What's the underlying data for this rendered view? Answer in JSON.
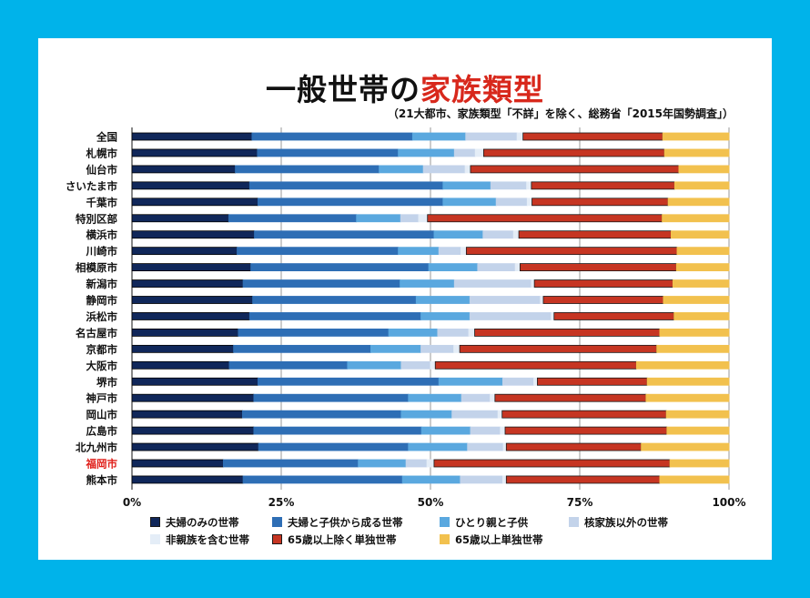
{
  "title": {
    "prefix": "一般世帯の",
    "accent": "家族類型"
  },
  "subtitle": "（21大都市、家族類型「不詳」を除く、総務省「2015年国勢調査」）",
  "colors": {
    "background": "#00b3ea",
    "highlight_label": "#e0201b"
  },
  "chart_data": {
    "type": "bar",
    "orientation": "horizontal",
    "stacked": true,
    "percent_scale": true,
    "categories": [
      "全国",
      "札幌市",
      "仙台市",
      "さいたま市",
      "千葉市",
      "特別区部",
      "横浜市",
      "川崎市",
      "相模原市",
      "新潟市",
      "静岡市",
      "浜松市",
      "名古屋市",
      "京都市",
      "大阪市",
      "堺市",
      "神戸市",
      "岡山市",
      "広島市",
      "北九州市",
      "福岡市",
      "熊本市"
    ],
    "highlight_category": "福岡市",
    "xlim": [
      0,
      100
    ],
    "xticks": [
      "0%",
      "25%",
      "50%",
      "75%",
      "100%"
    ],
    "grid": true,
    "legend_position": "bottom",
    "series": [
      {
        "name": "夫婦のみの世帯",
        "color": "#10275a",
        "border": "#000000",
        "values": [
          20.1,
          21.0,
          17.3,
          19.7,
          21.1,
          16.2,
          20.5,
          17.6,
          19.9,
          18.6,
          20.2,
          19.7,
          17.8,
          17.0,
          16.3,
          21.1,
          20.4,
          18.5,
          20.4,
          21.2,
          15.3,
          18.6
        ]
      },
      {
        "name": "夫婦と子供から成る世帯",
        "color": "#2e6eb5",
        "border": "#2e6eb5",
        "values": [
          26.9,
          23.6,
          24.1,
          32.4,
          31.0,
          21.4,
          30.1,
          27.0,
          29.8,
          26.3,
          27.4,
          28.7,
          25.2,
          23.0,
          19.8,
          30.3,
          25.9,
          26.6,
          28.1,
          25.1,
          22.6,
          26.7
        ]
      },
      {
        "name": "ひとり親と子供",
        "color": "#5aa8df",
        "border": "#5aa8df",
        "values": [
          8.9,
          9.4,
          7.4,
          8.0,
          8.9,
          7.4,
          8.2,
          6.8,
          8.2,
          9.1,
          9.0,
          8.2,
          8.2,
          8.4,
          9.0,
          10.7,
          8.9,
          8.5,
          8.2,
          9.9,
          8.0,
          9.7
        ]
      },
      {
        "name": "核家族以外の世帯",
        "color": "#c3d3ea",
        "border": "#c3d3ea",
        "values": [
          8.6,
          3.5,
          7.0,
          6.0,
          5.2,
          3.0,
          5.1,
          3.7,
          6.3,
          12.9,
          11.8,
          13.6,
          5.2,
          5.5,
          4.9,
          5.2,
          4.8,
          7.7,
          5.0,
          6.0,
          3.5,
          7.1
        ]
      },
      {
        "name": "非親族を含む世帯",
        "color": "#e4edf7",
        "border": "#e4edf7",
        "values": [
          1.0,
          1.4,
          0.9,
          0.8,
          0.8,
          1.5,
          0.9,
          0.9,
          0.8,
          0.5,
          0.5,
          0.5,
          1.0,
          1.0,
          0.8,
          0.6,
          0.8,
          0.7,
          0.8,
          0.5,
          1.2,
          0.6
        ]
      },
      {
        "name": "65歳以上除く単独世帯",
        "color": "#c63522",
        "border": "#1a1a1a",
        "values": [
          23.4,
          30.3,
          34.9,
          24.0,
          22.8,
          39.3,
          25.5,
          35.3,
          26.2,
          23.2,
          20.1,
          20.1,
          31.0,
          33.0,
          33.7,
          18.4,
          25.3,
          27.5,
          27.1,
          22.6,
          39.5,
          25.7
        ]
      },
      {
        "name": "65歳以上単独世帯",
        "color": "#f2c14e",
        "border": "#f2c14e",
        "values": [
          11.1,
          10.8,
          8.4,
          9.1,
          10.2,
          11.2,
          9.7,
          8.7,
          8.8,
          9.4,
          11.0,
          9.2,
          11.6,
          12.1,
          15.5,
          13.7,
          13.9,
          10.5,
          10.4,
          14.7,
          9.9,
          11.6
        ]
      }
    ]
  }
}
